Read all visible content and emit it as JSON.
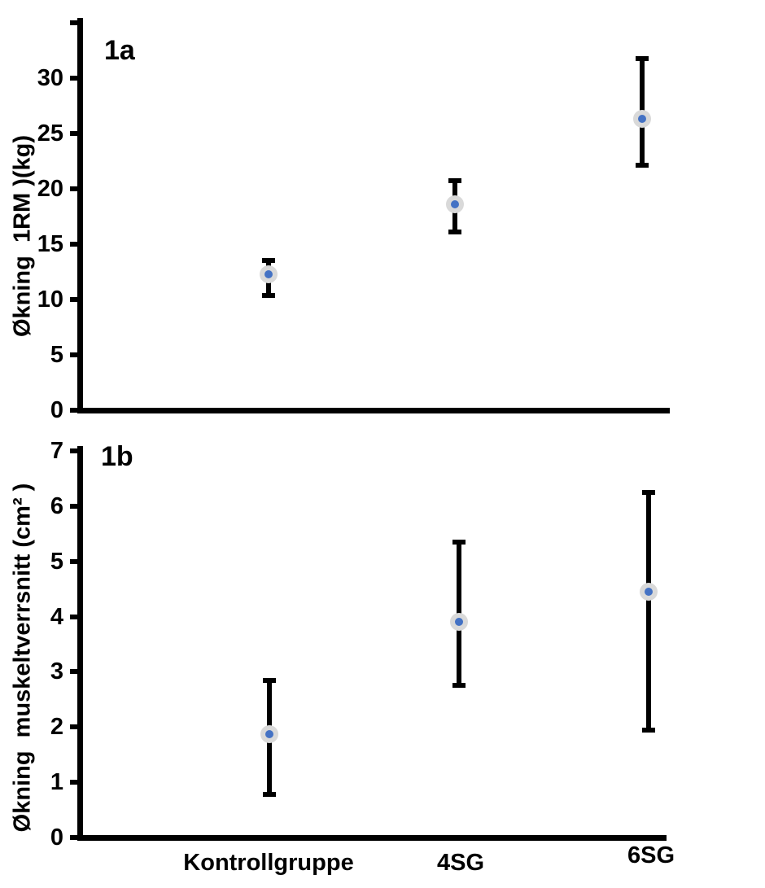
{
  "figure": {
    "background": "#ffffff",
    "panels": [
      "1a",
      "1b"
    ]
  },
  "colors": {
    "axis": "#000000",
    "error_bar": "#000000",
    "marker_outer": "#d9d9d9",
    "marker_inner": "#4472c4",
    "text": "#000000"
  },
  "chart_data": [
    {
      "type": "scatter",
      "panel_label": "1a",
      "title": "",
      "xlabel": "",
      "ylabel": "Økning  1RM )(kg)",
      "categories": [
        "Kontrollgruppe",
        "4SG",
        "6SG"
      ],
      "series": [
        {
          "name": "Økning 1RM (kg)",
          "values": [
            12.3,
            18.6,
            26.3
          ],
          "error_low": [
            10.4,
            16.1,
            22.1
          ],
          "error_high": [
            13.5,
            20.7,
            31.8
          ]
        }
      ],
      "ylim": [
        0,
        35
      ],
      "yticks": [
        0,
        5,
        10,
        15,
        20,
        25,
        30
      ],
      "grid": false,
      "legend_position": "none",
      "show_x_labels": false,
      "error_bars": true,
      "marker": "circle-dot"
    },
    {
      "type": "scatter",
      "panel_label": "1b",
      "title": "",
      "xlabel": "",
      "ylabel": "Økning  muskeltverrsnitt (cm² )",
      "categories": [
        "Kontrollgruppe",
        "4SG",
        "6SG"
      ],
      "series": [
        {
          "name": "Økning muskeltverrsnitt (cm²)",
          "values": [
            1.87,
            3.9,
            4.45
          ],
          "error_low": [
            0.78,
            2.75,
            1.95
          ],
          "error_high": [
            2.85,
            5.35,
            6.25
          ]
        }
      ],
      "ylim": [
        0,
        7
      ],
      "yticks": [
        0,
        1,
        2,
        3,
        4,
        5,
        6,
        7
      ],
      "grid": false,
      "legend_position": "none",
      "show_x_labels": true,
      "error_bars": true,
      "marker": "circle-dot"
    }
  ]
}
